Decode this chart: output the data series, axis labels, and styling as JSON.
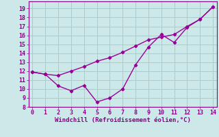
{
  "xlabel": "Windchill (Refroidissement éolien,°C)",
  "background_color": "#cce8e8",
  "grid_color": "#aacccc",
  "line_color": "#990099",
  "line1_x": [
    0,
    1,
    2,
    3,
    4,
    5,
    6,
    7,
    8,
    9,
    10,
    11,
    12,
    13,
    14
  ],
  "line1_y": [
    11.9,
    11.65,
    11.5,
    12.0,
    12.5,
    13.1,
    13.5,
    14.1,
    14.8,
    15.5,
    15.8,
    16.1,
    17.0,
    17.8,
    19.2
  ],
  "line2_x": [
    0,
    1,
    2,
    3,
    4,
    5,
    6,
    7,
    8,
    9,
    10,
    11,
    12,
    13,
    14
  ],
  "line2_y": [
    11.9,
    11.65,
    10.35,
    9.8,
    10.4,
    8.55,
    9.0,
    10.0,
    12.7,
    14.7,
    16.1,
    15.2,
    16.9,
    17.8,
    19.2
  ],
  "xlim": [
    -0.3,
    14.3
  ],
  "ylim": [
    8,
    19.8
  ],
  "yticks": [
    8,
    9,
    10,
    11,
    12,
    13,
    14,
    15,
    16,
    17,
    18,
    19
  ],
  "xticks": [
    0,
    1,
    2,
    3,
    4,
    5,
    6,
    7,
    8,
    9,
    10,
    11,
    12,
    13,
    14
  ],
  "marker": "D",
  "marker_size": 2.2,
  "line_width": 1.0,
  "font_color": "#880088",
  "xlabel_fontsize": 6.5,
  "tick_fontsize": 6.0,
  "spine_color": "#880088"
}
